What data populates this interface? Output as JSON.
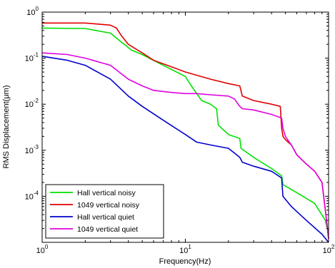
{
  "chart_data": {
    "type": "line",
    "title": "",
    "xlabel": "Frequency(Hz)",
    "ylabel": "RMS Displacement(μm)",
    "xscale": "log",
    "yscale": "log",
    "xlim": [
      1,
      100
    ],
    "ylim": [
      1e-05,
      1
    ],
    "grid": false,
    "legend_position": "bottom-left",
    "x_ticks": [
      {
        "base": "10",
        "exp": "0"
      },
      {
        "base": "10",
        "exp": "1"
      },
      {
        "base": "10",
        "exp": "2"
      }
    ],
    "y_ticks": [
      {
        "base": "10",
        "exp": "-4"
      },
      {
        "base": "10",
        "exp": "-3"
      },
      {
        "base": "10",
        "exp": "-2"
      },
      {
        "base": "10",
        "exp": "-1"
      },
      {
        "base": "10",
        "exp": "0"
      }
    ],
    "series": [
      {
        "name": "Hall vertical noisy",
        "color": "#00e000",
        "x": [
          1,
          2,
          3,
          3.6,
          4.2,
          5,
          7,
          10,
          11,
          13,
          15,
          16.5,
          17,
          20,
          24,
          24.5,
          30,
          40,
          47,
          48,
          60,
          80,
          95,
          100
        ],
        "y": [
          0.45,
          0.44,
          0.35,
          0.22,
          0.15,
          0.12,
          0.07,
          0.04,
          0.025,
          0.012,
          0.01,
          0.008,
          0.0035,
          0.0022,
          0.0018,
          0.0011,
          0.0007,
          0.0004,
          0.00028,
          0.00018,
          0.00012,
          7e-05,
          3e-05,
          1.5e-05
        ]
      },
      {
        "name": "1049 vertical noisy",
        "color": "#e00000",
        "x": [
          1,
          2,
          3,
          3.3,
          3.6,
          4,
          5,
          6,
          8,
          10,
          15,
          20,
          24,
          25,
          30,
          40,
          46,
          47,
          48,
          50,
          55,
          60,
          70,
          80,
          90,
          95,
          100
        ],
        "y": [
          0.58,
          0.58,
          0.52,
          0.45,
          0.3,
          0.2,
          0.13,
          0.09,
          0.065,
          0.05,
          0.035,
          0.028,
          0.025,
          0.015,
          0.012,
          0.01,
          0.009,
          0.003,
          0.002,
          0.0017,
          0.0013,
          0.0008,
          0.0005,
          0.00035,
          0.0002,
          5e-05,
          1.2e-05
        ]
      },
      {
        "name": "Hall vertical quiet",
        "color": "#0000cc",
        "x": [
          1,
          1.5,
          2,
          3,
          4,
          5,
          7,
          10,
          12,
          15,
          20,
          24,
          25,
          30,
          40,
          47,
          48,
          55,
          70,
          90,
          100
        ],
        "y": [
          0.11,
          0.09,
          0.07,
          0.035,
          0.015,
          0.009,
          0.0045,
          0.0022,
          0.0015,
          0.0013,
          0.0011,
          0.0007,
          0.00055,
          0.00045,
          0.00035,
          0.00025,
          0.0001,
          6e-05,
          3e-05,
          1.5e-05,
          1e-05
        ]
      },
      {
        "name": "1049 vertical quiet",
        "color": "#e000e0",
        "x": [
          1,
          1.5,
          2,
          3,
          4,
          5,
          6,
          8,
          10,
          12,
          15,
          20,
          22,
          24,
          25,
          30,
          40,
          47,
          48,
          50,
          55,
          60,
          70,
          80,
          90,
          95,
          100
        ],
        "y": [
          0.13,
          0.12,
          0.1,
          0.07,
          0.035,
          0.025,
          0.02,
          0.018,
          0.017,
          0.017,
          0.016,
          0.015,
          0.013,
          0.009,
          0.008,
          0.0075,
          0.006,
          0.005,
          0.003,
          0.002,
          0.0013,
          0.0008,
          0.0005,
          0.00035,
          0.0002,
          5e-05,
          1.2e-05
        ]
      }
    ]
  }
}
